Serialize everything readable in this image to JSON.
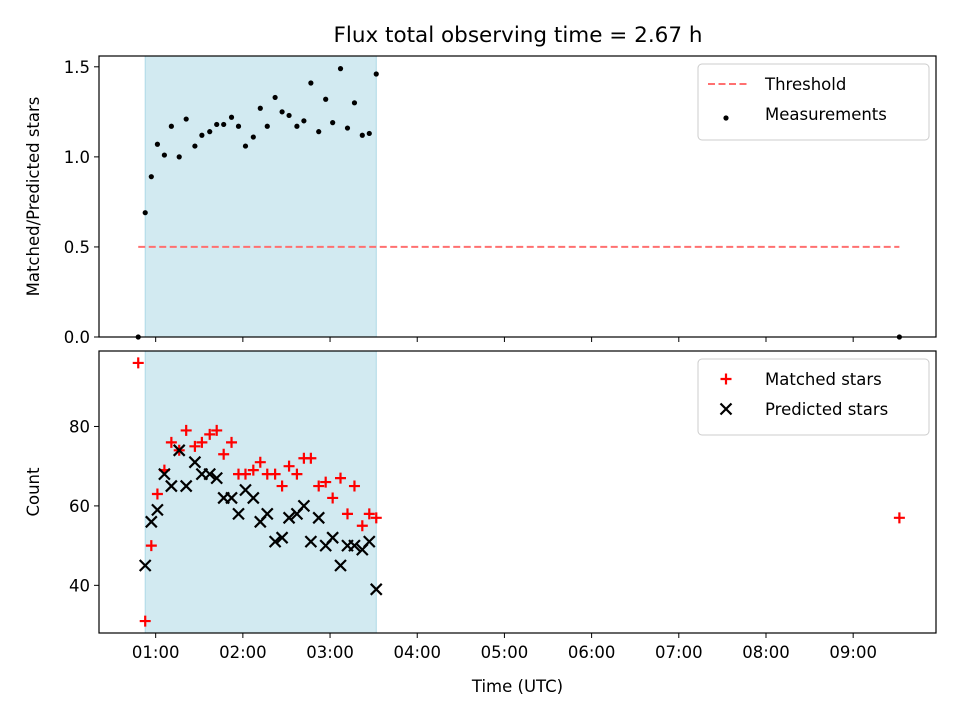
{
  "title": "Flux total observing time = 2.67 h",
  "colors": {
    "threshold": "#ff7070",
    "measurements": "#000000",
    "matched": "#ff0000",
    "predicted": "#000000",
    "span": "#add8e6"
  },
  "chart_data": [
    {
      "type": "scatter",
      "panel": "top",
      "ylabel": "Matched/Predicted stars",
      "xlabel": "",
      "ylim": [
        0,
        1.56
      ],
      "xlim": [
        0.35,
        9.95
      ],
      "yticks": [
        0,
        0.5,
        1.0,
        1.5
      ],
      "ytick_labels": [
        "0.0",
        "0.5",
        "1.0",
        "1.5"
      ],
      "shaded_span": [
        0.88,
        3.53
      ],
      "legend_position": "upper right",
      "legend": [
        "Threshold",
        "Measurements"
      ],
      "threshold": {
        "name": "Threshold",
        "value": 0.5,
        "x": [
          0.8,
          9.53
        ],
        "style": "dashed"
      },
      "series": [
        {
          "name": "Measurements",
          "x": [
            0.8,
            0.88,
            0.95,
            1.02,
            1.1,
            1.18,
            1.27,
            1.35,
            1.45,
            1.53,
            1.62,
            1.7,
            1.78,
            1.87,
            1.95,
            2.03,
            2.12,
            2.2,
            2.28,
            2.37,
            2.45,
            2.53,
            2.62,
            2.7,
            2.78,
            2.87,
            2.95,
            3.03,
            3.12,
            3.2,
            3.28,
            3.37,
            3.45,
            3.53,
            9.53
          ],
          "y": [
            0.0,
            0.69,
            0.89,
            1.07,
            1.01,
            1.17,
            1.0,
            1.21,
            1.06,
            1.12,
            1.14,
            1.18,
            1.18,
            1.22,
            1.17,
            1.06,
            1.11,
            1.27,
            1.17,
            1.33,
            1.25,
            1.23,
            1.17,
            1.2,
            1.41,
            1.14,
            1.32,
            1.19,
            1.49,
            1.16,
            1.3,
            1.12,
            1.13,
            1.46,
            0.0
          ]
        }
      ]
    },
    {
      "type": "scatter",
      "panel": "bottom",
      "ylabel": "Count",
      "xlabel": "Time (UTC)",
      "ylim": [
        28,
        99
      ],
      "xlim": [
        0.35,
        9.95
      ],
      "yticks": [
        40,
        60,
        80
      ],
      "ytick_labels": [
        "40",
        "60",
        "80"
      ],
      "xticks": [
        1,
        2,
        3,
        4,
        5,
        6,
        7,
        8,
        9
      ],
      "xtick_labels": [
        "01:00",
        "02:00",
        "03:00",
        "04:00",
        "05:00",
        "06:00",
        "07:00",
        "08:00",
        "09:00"
      ],
      "shaded_span": [
        0.88,
        3.53
      ],
      "legend_position": "upper right",
      "legend": [
        "Matched stars",
        "Predicted stars"
      ],
      "series": [
        {
          "name": "Matched stars",
          "marker": "plus",
          "x": [
            0.8,
            0.88,
            0.95,
            1.02,
            1.1,
            1.18,
            1.27,
            1.35,
            1.45,
            1.53,
            1.62,
            1.7,
            1.78,
            1.87,
            1.95,
            2.03,
            2.12,
            2.2,
            2.28,
            2.37,
            2.45,
            2.53,
            2.62,
            2.7,
            2.78,
            2.87,
            2.95,
            3.03,
            3.12,
            3.2,
            3.28,
            3.37,
            3.45,
            3.53,
            9.53
          ],
          "y": [
            96,
            31,
            50,
            63,
            69,
            76,
            74,
            79,
            75,
            76,
            78,
            79,
            73,
            76,
            68,
            68,
            69,
            71,
            68,
            68,
            65,
            70,
            68,
            72,
            72,
            65,
            66,
            62,
            67,
            58,
            65,
            55,
            58,
            57,
            57
          ]
        },
        {
          "name": "Predicted stars",
          "marker": "x",
          "x": [
            0.88,
            0.95,
            1.02,
            1.1,
            1.18,
            1.27,
            1.35,
            1.45,
            1.53,
            1.62,
            1.7,
            1.78,
            1.87,
            1.95,
            2.03,
            2.12,
            2.2,
            2.28,
            2.37,
            2.45,
            2.53,
            2.62,
            2.7,
            2.78,
            2.87,
            2.95,
            3.03,
            3.12,
            3.2,
            3.28,
            3.37,
            3.45,
            3.53
          ],
          "y": [
            45,
            56,
            59,
            68,
            65,
            74,
            65,
            71,
            68,
            68,
            67,
            62,
            62,
            58,
            64,
            62,
            56,
            58,
            51,
            52,
            57,
            58,
            60,
            51,
            57,
            50,
            52,
            45,
            50,
            50,
            49,
            51,
            39
          ]
        }
      ]
    }
  ]
}
